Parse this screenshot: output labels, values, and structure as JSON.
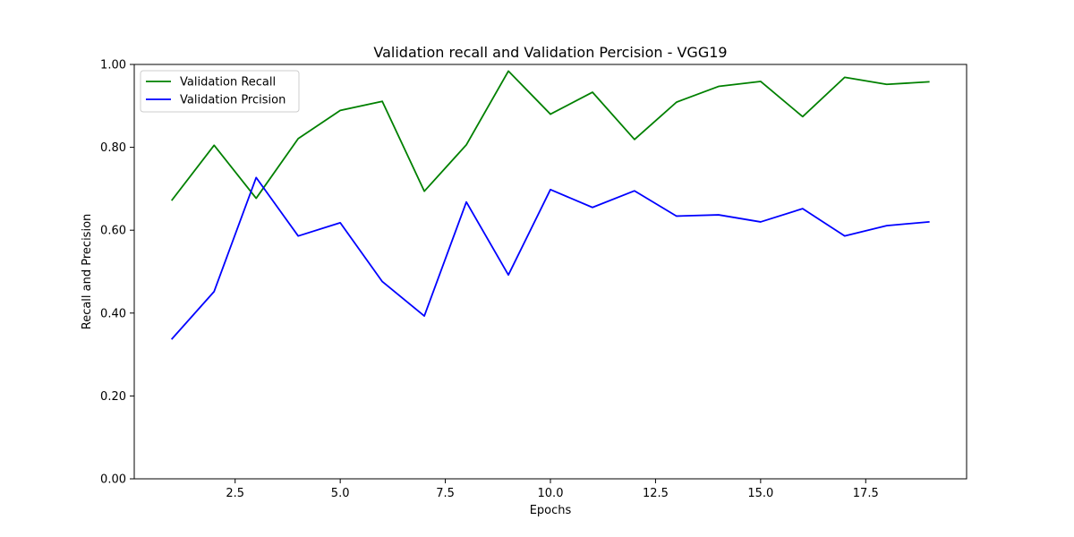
{
  "chart_data": {
    "type": "line",
    "title": "Validation recall and Validation Percision - VGG19",
    "xlabel": "Epochs",
    "ylabel": "Recall and Precision",
    "xlim": [
      0.1,
      19.9
    ],
    "ylim": [
      0.0,
      1.0
    ],
    "xticks": [
      2.5,
      5.0,
      7.5,
      10.0,
      12.5,
      15.0,
      17.5
    ],
    "xtick_labels": [
      "2.5",
      "5.0",
      "7.5",
      "10.0",
      "12.5",
      "15.0",
      "17.5"
    ],
    "yticks": [
      0.0,
      0.2,
      0.4,
      0.6,
      0.8,
      1.0
    ],
    "ytick_labels": [
      "0.00",
      "0.20",
      "0.40",
      "0.60",
      "0.80",
      "1.00"
    ],
    "grid": false,
    "legend_position": "top-left",
    "x": [
      1,
      2,
      3,
      4,
      5,
      6,
      7,
      8,
      9,
      10,
      11,
      12,
      13,
      14,
      15,
      16,
      17,
      18,
      19
    ],
    "series": [
      {
        "name": "Validation Recall",
        "color": "#008000",
        "values": [
          0.673,
          0.805,
          0.677,
          0.821,
          0.889,
          0.911,
          0.694,
          0.806,
          0.984,
          0.88,
          0.933,
          0.819,
          0.909,
          0.947,
          0.959,
          0.874,
          0.969,
          0.952,
          0.958
        ]
      },
      {
        "name": "Validation Prcision",
        "color": "#0000ff",
        "values": [
          0.338,
          0.452,
          0.727,
          0.586,
          0.618,
          0.476,
          0.393,
          0.668,
          0.492,
          0.698,
          0.655,
          0.695,
          0.634,
          0.637,
          0.62,
          0.652,
          0.586,
          0.611,
          0.62
        ]
      }
    ]
  }
}
